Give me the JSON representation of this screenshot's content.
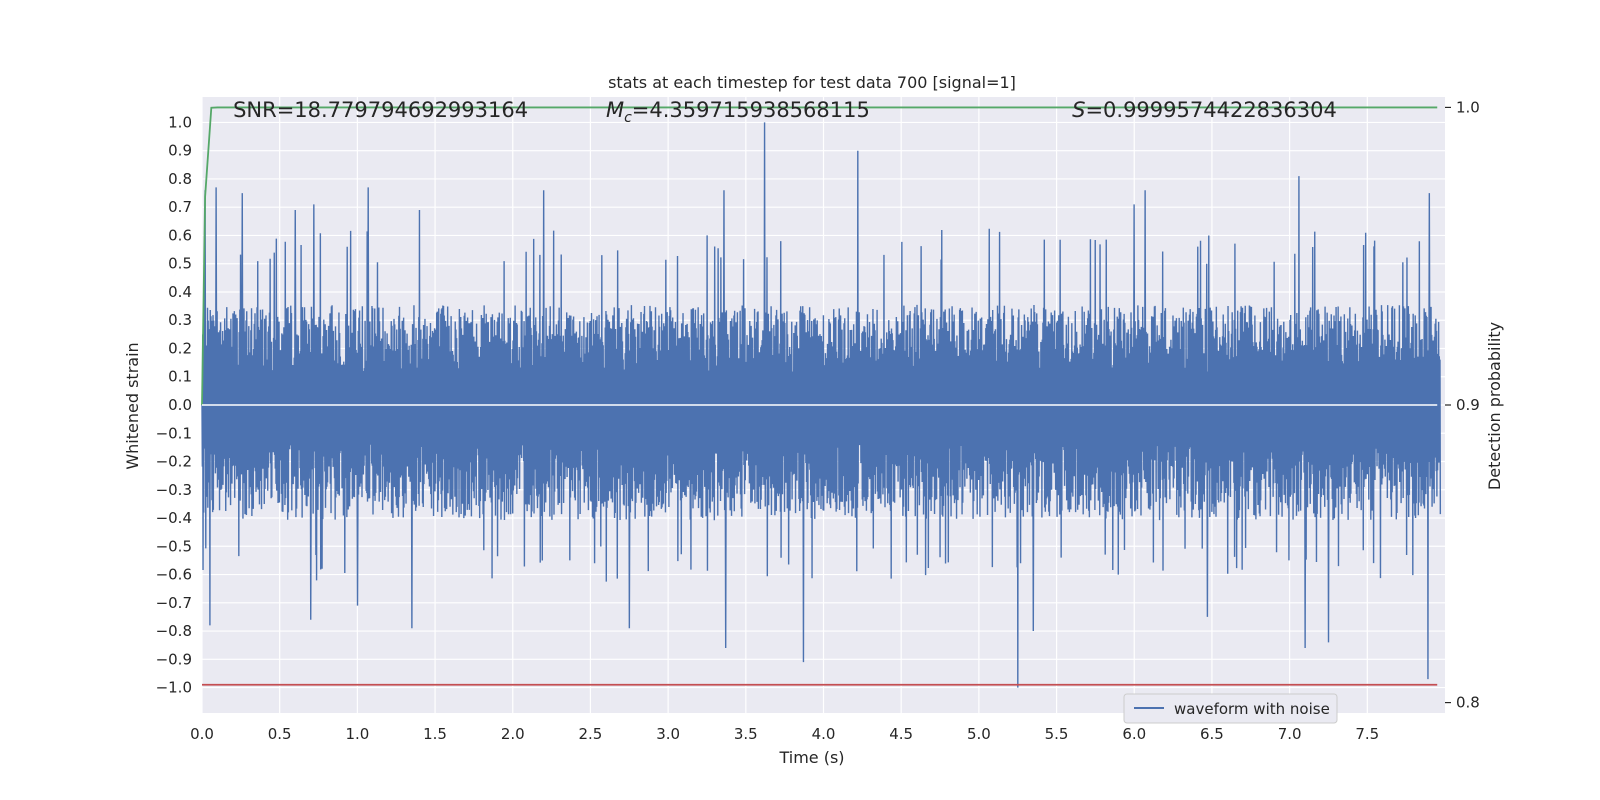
{
  "chart_data": {
    "type": "line",
    "title": "stats at each timestep for test data 700 [signal=1]",
    "xlabel": "Time (s)",
    "ylabel": "Whitened strain",
    "y2label": "Detection probability",
    "xlim": [
      0.0,
      8.0
    ],
    "ylim": [
      -1.09,
      1.09
    ],
    "y2lim": [
      0.7965,
      1.0035
    ],
    "xticks": [
      0.0,
      0.5,
      1.0,
      1.5,
      2.0,
      2.5,
      3.0,
      3.5,
      4.0,
      4.5,
      5.0,
      5.5,
      6.0,
      6.5,
      7.0,
      7.5
    ],
    "xtick_labels": [
      "0.0",
      "0.5",
      "1.0",
      "1.5",
      "2.0",
      "2.5",
      "3.0",
      "3.5",
      "4.0",
      "4.5",
      "5.0",
      "5.5",
      "6.0",
      "6.5",
      "7.0",
      "7.5"
    ],
    "yticks": [
      1.0,
      0.9,
      0.8,
      0.7,
      0.6,
      0.5,
      0.4,
      0.3,
      0.2,
      0.1,
      0.0,
      -0.1,
      -0.2,
      -0.3,
      -0.4,
      -0.5,
      -0.6,
      -0.7,
      -0.8,
      -0.9,
      -1.0
    ],
    "ytick_labels": [
      "1.0",
      "0.9",
      "0.8",
      "0.7",
      "0.6",
      "0.5",
      "0.4",
      "0.3",
      "0.2",
      "0.1",
      "0.0",
      "−0.1",
      "−0.2",
      "−0.3",
      "−0.4",
      "−0.5",
      "−0.6",
      "−0.7",
      "−0.8",
      "−0.9",
      "−1.0"
    ],
    "y2ticks": [
      1.0,
      0.9,
      0.8
    ],
    "y2tick_labels": [
      "1.0",
      "0.9",
      "0.8"
    ],
    "grid": true,
    "legend_position": "bottom-right",
    "series": [
      {
        "name": "waveform with noise",
        "color": "#4c72b0",
        "kind": "noise",
        "envelope": {
          "typical_pos": 0.5,
          "typical_neg": -0.5,
          "dense_pos": 0.33,
          "dense_neg": -0.38
        },
        "peaks": [
          {
            "x": 0.02,
            "y": 0.76
          },
          {
            "x": 0.09,
            "y": 0.77
          },
          {
            "x": 0.26,
            "y": 0.75
          },
          {
            "x": 0.6,
            "y": 0.69
          },
          {
            "x": 0.72,
            "y": 0.71
          },
          {
            "x": 1.07,
            "y": 0.77
          },
          {
            "x": 1.4,
            "y": 0.69
          },
          {
            "x": 2.2,
            "y": 0.76
          },
          {
            "x": 3.36,
            "y": 0.76
          },
          {
            "x": 3.62,
            "y": 1.0
          },
          {
            "x": 4.22,
            "y": 0.9
          },
          {
            "x": 6.0,
            "y": 0.71
          },
          {
            "x": 6.07,
            "y": 0.76
          },
          {
            "x": 7.06,
            "y": 0.81
          },
          {
            "x": 7.9,
            "y": 0.75
          }
        ],
        "troughs": [
          {
            "x": 0.05,
            "y": -0.78
          },
          {
            "x": 0.7,
            "y": -0.76
          },
          {
            "x": 1.0,
            "y": -0.71
          },
          {
            "x": 1.35,
            "y": -0.79
          },
          {
            "x": 2.75,
            "y": -0.79
          },
          {
            "x": 3.37,
            "y": -0.86
          },
          {
            "x": 3.87,
            "y": -0.91
          },
          {
            "x": 5.25,
            "y": -1.0
          },
          {
            "x": 5.35,
            "y": -0.8
          },
          {
            "x": 6.47,
            "y": -0.75
          },
          {
            "x": 7.1,
            "y": -0.86
          },
          {
            "x": 7.25,
            "y": -0.84
          },
          {
            "x": 7.89,
            "y": -0.97
          }
        ]
      },
      {
        "name": "",
        "color": "#55a868",
        "axis": "right",
        "x": [
          0.0,
          0.02,
          0.06,
          0.1,
          0.5,
          1.0,
          2.0,
          3.0,
          4.0,
          5.0,
          6.0,
          7.0,
          7.95
        ],
        "y": [
          0.9,
          0.97,
          0.9999,
          1.0,
          1.0,
          1.0,
          1.0,
          1.0,
          1.0,
          1.0,
          1.0,
          1.0,
          1.0
        ]
      },
      {
        "name": "",
        "color": "#c44e52",
        "axis": "left",
        "x": [
          0.0,
          7.95
        ],
        "y": [
          -0.99,
          -0.99
        ]
      },
      {
        "name": "",
        "color": "#ffffff",
        "axis": "left",
        "x": [
          0.0,
          7.95
        ],
        "y": [
          0.0,
          0.0
        ]
      }
    ],
    "annotations": [
      {
        "key": "snr",
        "text": "SNR=18.779794692993164",
        "x": 0.2,
        "y": 1.02
      },
      {
        "key": "mc",
        "text": "=4.359715938568115",
        "x": 2.6,
        "y": 1.02,
        "symbol": "M",
        "subscript": "c"
      },
      {
        "key": "s",
        "text": "=0.9999574422836304",
        "x": 5.6,
        "y": 1.02,
        "symbol": "S"
      }
    ]
  }
}
